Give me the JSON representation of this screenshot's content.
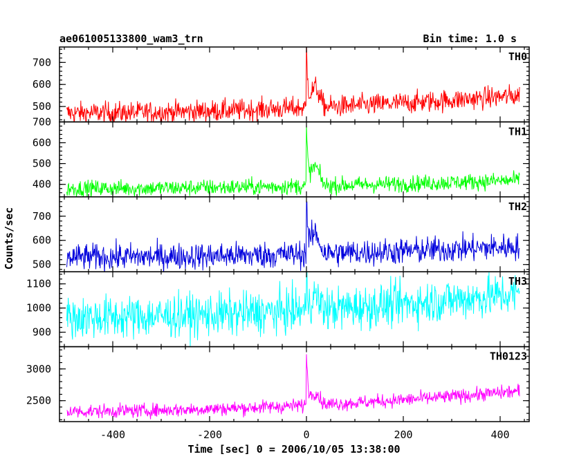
{
  "chart_data": {
    "type": "line",
    "title": "ae061005133800_wam3_trn",
    "subtitle": "Bin time: 1.0 s",
    "xlabel": "Time [sec] 0 = 2006/10/05 13:38:00",
    "ylabel": "Counts/sec",
    "xlim": [
      -510,
      460
    ],
    "xticks": [
      -400,
      -200,
      0,
      200,
      400
    ],
    "x_range": [
      -495,
      440
    ],
    "grid": false,
    "panels": [
      {
        "name": "TH0",
        "color": "#ff0000",
        "ylim": [
          430,
          770
        ],
        "yticks": [
          500,
          600,
          700
        ],
        "baseline_start": 470,
        "baseline_end": 550,
        "noise": 25,
        "peak": 780,
        "bump": 610
      },
      {
        "name": "TH1",
        "color": "#00ff00",
        "ylim": [
          340,
          700
        ],
        "yticks": [
          400,
          500,
          600,
          700
        ],
        "baseline_start": 380,
        "baseline_end": 420,
        "noise": 20,
        "peak": 690,
        "bump": 510
      },
      {
        "name": "TH2",
        "color": "#0000dd",
        "ylim": [
          470,
          780
        ],
        "yticks": [
          500,
          600,
          700
        ],
        "baseline_start": 530,
        "baseline_end": 575,
        "noise": 28,
        "peak": 790,
        "bump": 650
      },
      {
        "name": "TH3",
        "color": "#00ffff",
        "ylim": [
          840,
          1150
        ],
        "yticks": [
          900,
          1000,
          1100
        ],
        "baseline_start": 960,
        "baseline_end": 1060,
        "noise": 45,
        "peak": 1130,
        "bump": 1060
      },
      {
        "name": "TH0123",
        "color": "#ff00ff",
        "ylim": [
          2170,
          3350
        ],
        "yticks": [
          2500,
          3000
        ],
        "baseline_start": 2330,
        "baseline_end": 2650,
        "noise": 55,
        "peak": 3350,
        "bump": 2680
      }
    ]
  }
}
